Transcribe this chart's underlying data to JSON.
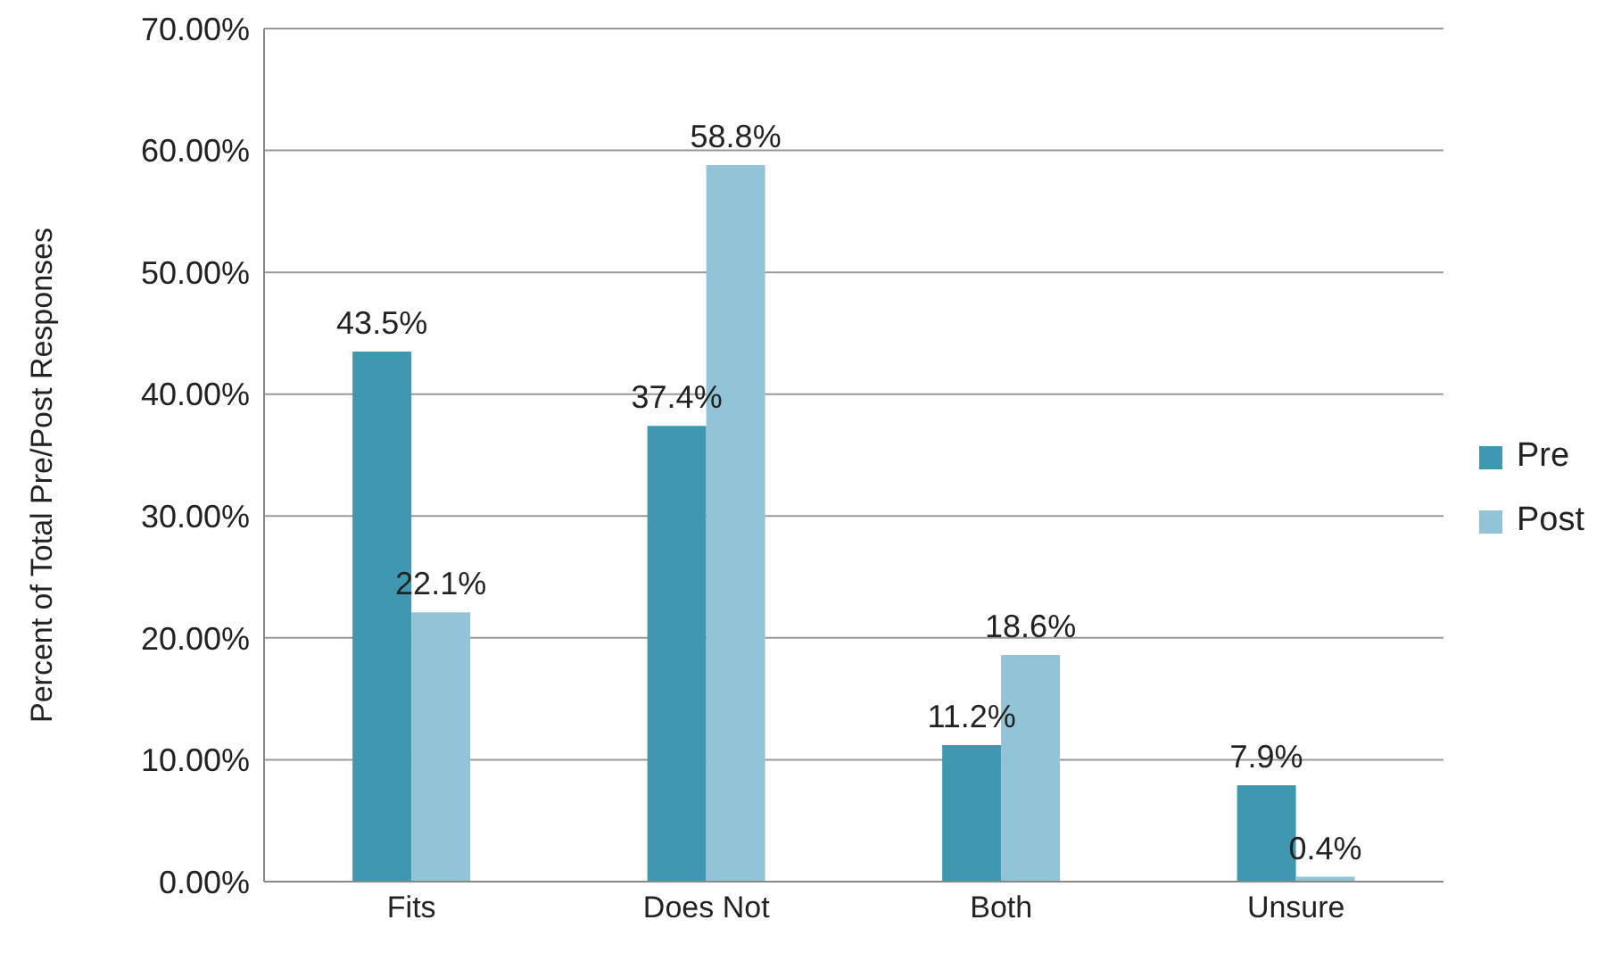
{
  "chart_data": {
    "type": "bar",
    "ylabel": "Percent of Total Pre/Post Responses",
    "categories": [
      "Fits",
      "Does Not",
      "Both",
      "Unsure"
    ],
    "series": [
      {
        "name": "Pre",
        "color": "#4097b0",
        "values": [
          43.5,
          37.4,
          11.2,
          7.9
        ],
        "value_labels": [
          "43.5%",
          "37.4%",
          "11.2%",
          "7.9%"
        ]
      },
      {
        "name": "Post",
        "color": "#92c3d6",
        "values": [
          22.1,
          58.8,
          18.6,
          0.4
        ],
        "value_labels": [
          "22.1%",
          "58.8%",
          "18.6%",
          "0.4%"
        ]
      }
    ],
    "ylim": [
      0,
      70
    ],
    "yticks": [
      {
        "value": 0,
        "label": "0.00%"
      },
      {
        "value": 10,
        "label": "10.00%"
      },
      {
        "value": 20,
        "label": "20.00%"
      },
      {
        "value": 30,
        "label": "30.00%"
      },
      {
        "value": 40,
        "label": "40.00%"
      },
      {
        "value": 50,
        "label": "50.00%"
      },
      {
        "value": 60,
        "label": "60.00%"
      },
      {
        "value": 70,
        "label": "70.00%"
      }
    ],
    "grid": "y",
    "legend": "right"
  }
}
